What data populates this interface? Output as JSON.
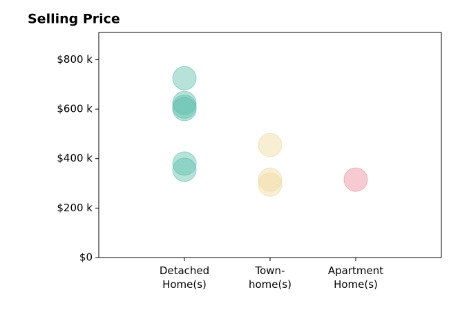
{
  "chart_data": {
    "type": "strip",
    "title": "Selling Price",
    "categories": [
      "Detached\nHome(s)",
      "Town-\nhome(s)",
      "Apartment\nHome(s)"
    ],
    "colors": [
      "#5fbfad",
      "#f0d9a0",
      "#ee8896"
    ],
    "values": [
      [
        725,
        625,
        610,
        600,
        380,
        355
      ],
      [
        455,
        315,
        295
      ],
      [
        315
      ]
    ],
    "ylim": [
      0,
      910
    ],
    "yticks": [
      {
        "value": 0,
        "label": "$0"
      },
      {
        "value": 200,
        "label": "$200 k"
      },
      {
        "value": 400,
        "label": "$400 k"
      },
      {
        "value": 600,
        "label": "$600 k"
      },
      {
        "value": 800,
        "label": "$800 k"
      }
    ]
  }
}
